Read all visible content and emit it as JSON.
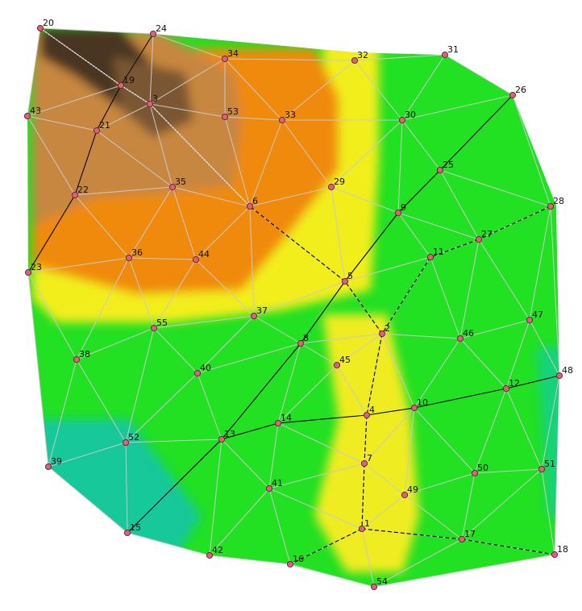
{
  "diagram": {
    "title": "",
    "node_color": "#e0607a",
    "edge_color": "#c9c9c9",
    "path_color": "#000000",
    "nodes": [
      {
        "id": "1",
        "label": "1"
      },
      {
        "id": "2",
        "label": "2"
      },
      {
        "id": "3",
        "label": "3"
      },
      {
        "id": "4",
        "label": "4"
      },
      {
        "id": "5",
        "label": "5"
      },
      {
        "id": "6",
        "label": "6"
      },
      {
        "id": "7",
        "label": "7"
      },
      {
        "id": "8",
        "label": "8"
      },
      {
        "id": "9",
        "label": "9"
      },
      {
        "id": "10",
        "label": "10"
      },
      {
        "id": "11",
        "label": "11"
      },
      {
        "id": "12",
        "label": "12"
      },
      {
        "id": "13",
        "label": "13"
      },
      {
        "id": "14",
        "label": "14"
      },
      {
        "id": "15",
        "label": "15"
      },
      {
        "id": "16",
        "label": "16"
      },
      {
        "id": "17",
        "label": "17"
      },
      {
        "id": "18",
        "label": "18"
      },
      {
        "id": "19",
        "label": "19"
      },
      {
        "id": "20",
        "label": "20"
      },
      {
        "id": "21",
        "label": "21"
      },
      {
        "id": "22",
        "label": "22"
      },
      {
        "id": "23",
        "label": "23"
      },
      {
        "id": "24",
        "label": "24"
      },
      {
        "id": "25",
        "label": "25"
      },
      {
        "id": "26",
        "label": "26"
      },
      {
        "id": "27",
        "label": "27"
      },
      {
        "id": "28",
        "label": "28"
      },
      {
        "id": "29",
        "label": "29"
      },
      {
        "id": "30",
        "label": "30"
      },
      {
        "id": "31",
        "label": "31"
      },
      {
        "id": "32",
        "label": "32"
      },
      {
        "id": "33",
        "label": "33"
      },
      {
        "id": "34",
        "label": "34"
      },
      {
        "id": "35",
        "label": "35"
      },
      {
        "id": "36",
        "label": "36"
      },
      {
        "id": "37",
        "label": "37"
      },
      {
        "id": "38",
        "label": "38"
      },
      {
        "id": "39",
        "label": "39"
      },
      {
        "id": "40",
        "label": "40"
      },
      {
        "id": "41",
        "label": "41"
      },
      {
        "id": "42",
        "label": "42"
      },
      {
        "id": "43",
        "label": "43"
      },
      {
        "id": "44",
        "label": "44"
      },
      {
        "id": "45",
        "label": "45"
      },
      {
        "id": "46",
        "label": "46"
      },
      {
        "id": "47",
        "label": "47"
      },
      {
        "id": "48",
        "label": "48"
      },
      {
        "id": "49",
        "label": "49"
      },
      {
        "id": "50",
        "label": "50"
      },
      {
        "id": "51",
        "label": "51"
      },
      {
        "id": "52",
        "label": "52"
      },
      {
        "id": "53",
        "label": "53"
      },
      {
        "id": "54",
        "label": "54"
      },
      {
        "id": "55",
        "label": "55"
      }
    ],
    "mesh_edges": [
      [
        "20",
        "24"
      ],
      [
        "20",
        "19"
      ],
      [
        "20",
        "43"
      ],
      [
        "24",
        "34"
      ],
      [
        "24",
        "19"
      ],
      [
        "24",
        "3"
      ],
      [
        "19",
        "43"
      ],
      [
        "19",
        "21"
      ],
      [
        "19",
        "3"
      ],
      [
        "34",
        "32"
      ],
      [
        "34",
        "3"
      ],
      [
        "34",
        "53"
      ],
      [
        "34",
        "33"
      ],
      [
        "32",
        "31"
      ],
      [
        "32",
        "30"
      ],
      [
        "32",
        "33"
      ],
      [
        "31",
        "30"
      ],
      [
        "31",
        "26"
      ],
      [
        "30",
        "26"
      ],
      [
        "30",
        "25"
      ],
      [
        "30",
        "29"
      ],
      [
        "30",
        "9"
      ],
      [
        "30",
        "33"
      ],
      [
        "26",
        "25"
      ],
      [
        "26",
        "28"
      ],
      [
        "25",
        "28"
      ],
      [
        "25",
        "27"
      ],
      [
        "25",
        "9"
      ],
      [
        "3",
        "53"
      ],
      [
        "3",
        "21"
      ],
      [
        "3",
        "35"
      ],
      [
        "3",
        "6"
      ],
      [
        "53",
        "33"
      ],
      [
        "53",
        "6"
      ],
      [
        "33",
        "6"
      ],
      [
        "33",
        "29"
      ],
      [
        "29",
        "6"
      ],
      [
        "29",
        "5"
      ],
      [
        "29",
        "9"
      ],
      [
        "9",
        "5"
      ],
      [
        "9",
        "11"
      ],
      [
        "9",
        "27"
      ],
      [
        "43",
        "21"
      ],
      [
        "43",
        "22"
      ],
      [
        "21",
        "22"
      ],
      [
        "21",
        "35"
      ],
      [
        "22",
        "35"
      ],
      [
        "22",
        "36"
      ],
      [
        "22",
        "23"
      ],
      [
        "35",
        "6"
      ],
      [
        "35",
        "36"
      ],
      [
        "35",
        "44"
      ],
      [
        "6",
        "44"
      ],
      [
        "6",
        "37"
      ],
      [
        "6",
        "5"
      ],
      [
        "23",
        "36"
      ],
      [
        "23",
        "38"
      ],
      [
        "23",
        "39"
      ],
      [
        "36",
        "44"
      ],
      [
        "36",
        "55"
      ],
      [
        "36",
        "38"
      ],
      [
        "44",
        "55"
      ],
      [
        "44",
        "37"
      ],
      [
        "55",
        "37"
      ],
      [
        "55",
        "40"
      ],
      [
        "55",
        "38"
      ],
      [
        "55",
        "52"
      ],
      [
        "37",
        "5"
      ],
      [
        "37",
        "8"
      ],
      [
        "37",
        "40"
      ],
      [
        "5",
        "11"
      ],
      [
        "5",
        "2"
      ],
      [
        "5",
        "8"
      ],
      [
        "11",
        "27"
      ],
      [
        "11",
        "2"
      ],
      [
        "11",
        "46"
      ],
      [
        "27",
        "28"
      ],
      [
        "27",
        "46"
      ],
      [
        "27",
        "47"
      ],
      [
        "28",
        "47"
      ],
      [
        "28",
        "48"
      ],
      [
        "8",
        "2"
      ],
      [
        "8",
        "45"
      ],
      [
        "8",
        "14"
      ],
      [
        "8",
        "13"
      ],
      [
        "8",
        "40"
      ],
      [
        "2",
        "45"
      ],
      [
        "2",
        "46"
      ],
      [
        "2",
        "10"
      ],
      [
        "2",
        "4"
      ],
      [
        "46",
        "47"
      ],
      [
        "46",
        "12"
      ],
      [
        "46",
        "10"
      ],
      [
        "47",
        "12"
      ],
      [
        "47",
        "48"
      ],
      [
        "38",
        "39"
      ],
      [
        "38",
        "52"
      ],
      [
        "40",
        "52"
      ],
      [
        "40",
        "13"
      ],
      [
        "45",
        "4"
      ],
      [
        "45",
        "14"
      ],
      [
        "14",
        "4"
      ],
      [
        "14",
        "13"
      ],
      [
        "14",
        "41"
      ],
      [
        "14",
        "7"
      ],
      [
        "4",
        "10"
      ],
      [
        "4",
        "7"
      ],
      [
        "10",
        "12"
      ],
      [
        "10",
        "7"
      ],
      [
        "10",
        "49"
      ],
      [
        "10",
        "50"
      ],
      [
        "12",
        "48"
      ],
      [
        "12",
        "50"
      ],
      [
        "12",
        "51"
      ],
      [
        "48",
        "51"
      ],
      [
        "48",
        "18"
      ],
      [
        "39",
        "52"
      ],
      [
        "39",
        "15"
      ],
      [
        "52",
        "13"
      ],
      [
        "52",
        "15"
      ],
      [
        "13",
        "15"
      ],
      [
        "13",
        "41"
      ],
      [
        "13",
        "42"
      ],
      [
        "7",
        "41"
      ],
      [
        "7",
        "49"
      ],
      [
        "7",
        "1"
      ],
      [
        "41",
        "42"
      ],
      [
        "41",
        "16"
      ],
      [
        "41",
        "1"
      ],
      [
        "49",
        "50"
      ],
      [
        "49",
        "1"
      ],
      [
        "49",
        "17"
      ],
      [
        "50",
        "51"
      ],
      [
        "50",
        "17"
      ],
      [
        "51",
        "17"
      ],
      [
        "51",
        "18"
      ],
      [
        "17",
        "18"
      ],
      [
        "17",
        "54"
      ],
      [
        "17",
        "1"
      ],
      [
        "1",
        "16"
      ],
      [
        "1",
        "54"
      ],
      [
        "15",
        "42"
      ],
      [
        "42",
        "16"
      ],
      [
        "16",
        "54"
      ],
      [
        "54",
        "18"
      ]
    ],
    "solid_edges": [
      [
        "24",
        "19"
      ],
      [
        "19",
        "21"
      ],
      [
        "21",
        "22"
      ],
      [
        "22",
        "23"
      ],
      [
        "26",
        "25"
      ],
      [
        "25",
        "9"
      ],
      [
        "9",
        "5"
      ],
      [
        "5",
        "8"
      ],
      [
        "8",
        "13"
      ],
      [
        "13",
        "15"
      ],
      [
        "13",
        "14"
      ],
      [
        "14",
        "4"
      ],
      [
        "4",
        "10"
      ],
      [
        "10",
        "12"
      ],
      [
        "12",
        "48"
      ]
    ],
    "dashed_edges": [
      [
        "28",
        "27"
      ],
      [
        "27",
        "11"
      ],
      [
        "11",
        "2"
      ],
      [
        "2",
        "5"
      ],
      [
        "5",
        "6"
      ],
      [
        "2",
        "4"
      ],
      [
        "4",
        "7"
      ],
      [
        "7",
        "1"
      ],
      [
        "1",
        "16"
      ],
      [
        "1",
        "17"
      ],
      [
        "17",
        "18"
      ]
    ],
    "dotted_edges": [
      [
        "20",
        "19"
      ],
      [
        "19",
        "3"
      ],
      [
        "3",
        "6"
      ]
    ]
  }
}
